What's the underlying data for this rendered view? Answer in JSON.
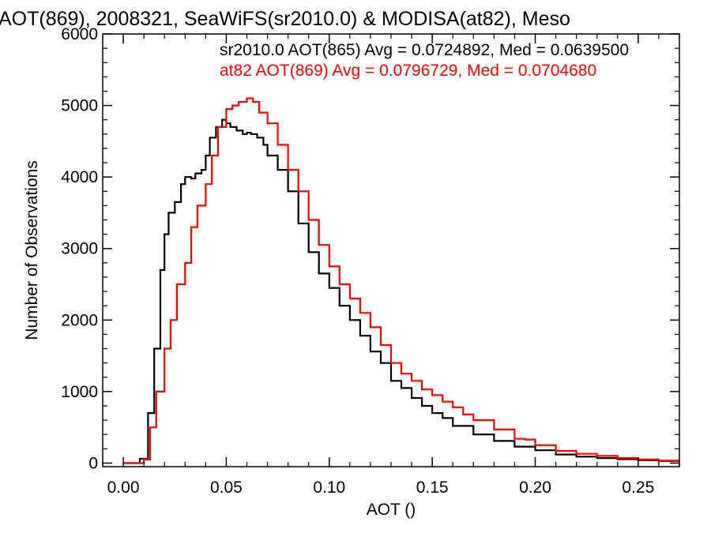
{
  "chart_data": {
    "type": "line",
    "style": "histogram-step",
    "title": "AOT(869), 2008321, SeaWiFS(sr2010.0) & MODISA(at82), Meso",
    "xlabel": "AOT ()",
    "ylabel": "Number of Observations",
    "xlim": [
      -0.01,
      0.27
    ],
    "ylim": [
      -50,
      6000
    ],
    "xticks": [
      "0.00",
      "0.05",
      "0.10",
      "0.15",
      "0.20",
      "0.25"
    ],
    "xtick_values": [
      0.0,
      0.05,
      0.1,
      0.15,
      0.2,
      0.25
    ],
    "yticks": [
      "0",
      "1000",
      "2000",
      "3000",
      "4000",
      "5000",
      "6000"
    ],
    "ytick_values": [
      0,
      1000,
      2000,
      3000,
      4000,
      5000,
      6000
    ],
    "grid": false,
    "legend_placement": "top-right",
    "series": [
      {
        "name": "sr2010.0 AOT(865) Avg = 0.0724892, Med = 0.0639500",
        "color": "#000000",
        "x": [
          0.0,
          0.005,
          0.008,
          0.012,
          0.015,
          0.018,
          0.02,
          0.022,
          0.025,
          0.028,
          0.03,
          0.033,
          0.035,
          0.038,
          0.04,
          0.042,
          0.045,
          0.048,
          0.05,
          0.052,
          0.055,
          0.058,
          0.06,
          0.062,
          0.065,
          0.068,
          0.07,
          0.075,
          0.08,
          0.085,
          0.09,
          0.095,
          0.1,
          0.105,
          0.11,
          0.115,
          0.12,
          0.125,
          0.13,
          0.135,
          0.14,
          0.145,
          0.15,
          0.155,
          0.16,
          0.17,
          0.18,
          0.19,
          0.2,
          0.21,
          0.22,
          0.23,
          0.24,
          0.25,
          0.26,
          0.27
        ],
        "values": [
          0,
          0,
          60,
          700,
          1600,
          2700,
          3200,
          3500,
          3650,
          3900,
          4000,
          3980,
          4050,
          4100,
          4300,
          4550,
          4700,
          4800,
          4750,
          4700,
          4650,
          4600,
          4620,
          4600,
          4550,
          4450,
          4300,
          4100,
          3800,
          3350,
          2950,
          2650,
          2450,
          2200,
          2000,
          1780,
          1560,
          1400,
          1150,
          1050,
          910,
          800,
          700,
          630,
          520,
          400,
          310,
          230,
          180,
          120,
          90,
          70,
          55,
          40,
          30,
          20
        ]
      },
      {
        "name": "at82 AOT(869) Avg = 0.0796729, Med = 0.0704680",
        "color": "#ff0000",
        "x": [
          0.0,
          0.006,
          0.01,
          0.013,
          0.016,
          0.02,
          0.023,
          0.026,
          0.03,
          0.033,
          0.036,
          0.04,
          0.043,
          0.046,
          0.05,
          0.053,
          0.056,
          0.06,
          0.063,
          0.066,
          0.07,
          0.075,
          0.08,
          0.085,
          0.09,
          0.095,
          0.1,
          0.105,
          0.11,
          0.115,
          0.12,
          0.125,
          0.13,
          0.135,
          0.14,
          0.145,
          0.15,
          0.155,
          0.16,
          0.165,
          0.17,
          0.18,
          0.19,
          0.195,
          0.2,
          0.21,
          0.22,
          0.23,
          0.24,
          0.25,
          0.26,
          0.27
        ],
        "values": [
          0,
          0,
          50,
          500,
          1000,
          1600,
          2000,
          2500,
          2800,
          3300,
          3600,
          3900,
          4300,
          4700,
          4950,
          5000,
          5050,
          5100,
          5050,
          4900,
          4750,
          4450,
          4100,
          3800,
          3400,
          3050,
          2750,
          2500,
          2300,
          2100,
          1900,
          1650,
          1400,
          1250,
          1150,
          1030,
          950,
          860,
          780,
          680,
          600,
          470,
          340,
          330,
          250,
          170,
          130,
          100,
          70,
          50,
          35,
          25
        ]
      }
    ]
  }
}
